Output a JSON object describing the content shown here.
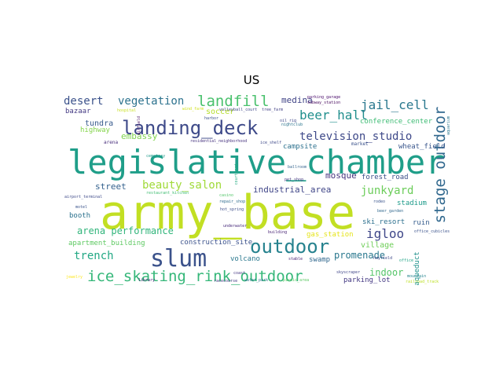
{
  "title": "US",
  "words": [
    {
      "text": "army_base",
      "color": "#c2df23"
    },
    {
      "text": "legislative_chamber",
      "color": "#1f9e89"
    },
    {
      "text": "landing_deck",
      "color": "#3e4a89"
    },
    {
      "text": "slum",
      "color": "#3b528b"
    },
    {
      "text": "ice_skating_rink_outdoor",
      "color": "#35b779"
    },
    {
      "text": "outdoor",
      "color": "#26828e"
    },
    {
      "text": "stage outdoor",
      "color": "#31688e"
    },
    {
      "text": "landfill",
      "color": "#4ac16d"
    },
    {
      "text": "television_studio",
      "color": "#3e4989"
    },
    {
      "text": "beer_hall",
      "color": "#218f8d"
    },
    {
      "text": "jail_cell",
      "color": "#2a788e"
    },
    {
      "text": "desert",
      "color": "#3b528b"
    },
    {
      "text": "vegetation",
      "color": "#2c728e"
    },
    {
      "text": "medina",
      "color": "#414487"
    },
    {
      "text": "beauty_salon",
      "color": "#a0da39"
    },
    {
      "text": "junkyard",
      "color": "#6ccd5a"
    },
    {
      "text": "igloo",
      "color": "#3f4788"
    },
    {
      "text": "trench",
      "color": "#22a884"
    },
    {
      "text": "arena performance",
      "color": "#31b57b"
    },
    {
      "text": "promenade",
      "color": "#2a788e"
    },
    {
      "text": "indoor",
      "color": "#54c568"
    },
    {
      "text": "mosque",
      "color": "#46337e"
    },
    {
      "text": "industrial_area",
      "color": "#404688"
    },
    {
      "text": "street",
      "color": "#34618d"
    },
    {
      "text": "embassy",
      "color": "#7fd34e"
    },
    {
      "text": "tundra",
      "color": "#375a8c"
    },
    {
      "text": "soccer",
      "color": "#b5de2b"
    },
    {
      "text": "bazaar",
      "color": "#443a83"
    },
    {
      "text": "highway",
      "color": "#84d44b"
    },
    {
      "text": "conference_center",
      "color": "#3dbc74"
    },
    {
      "text": "wheat_field",
      "color": "#39568c"
    },
    {
      "text": "campsite",
      "color": "#2d718e"
    },
    {
      "text": "forest_road",
      "color": "#3c4f8a"
    },
    {
      "text": "stadium",
      "color": "#1e9b8a"
    },
    {
      "text": "ski_resort",
      "color": "#2d708e"
    },
    {
      "text": "ruin",
      "color": "#365d8d"
    },
    {
      "text": "booth",
      "color": "#2c728e"
    },
    {
      "text": "village",
      "color": "#6ece58"
    },
    {
      "text": "apartment_building",
      "color": "#5ec962"
    },
    {
      "text": "construction_site",
      "color": "#3b528b"
    },
    {
      "text": "gas_station",
      "color": "#e5e419"
    },
    {
      "text": "volcano",
      "color": "#2a788e"
    },
    {
      "text": "swamp",
      "color": "#31688e"
    },
    {
      "text": "parking_lot",
      "color": "#443983"
    },
    {
      "text": "aqueduct",
      "color": "#20928c"
    },
    {
      "text": "arena",
      "color": "#472d7b"
    },
    {
      "text": "market",
      "color": "#3b528b"
    },
    {
      "text": "hospital",
      "color": "#c8e020"
    },
    {
      "text": "wind_farm",
      "color": "#d0e11c"
    },
    {
      "text": "residential_neighborhood",
      "color": "#46327e"
    },
    {
      "text": "ice_shelf",
      "color": "#3e4989"
    },
    {
      "text": "oil_rig",
      "color": "#3f4889"
    },
    {
      "text": "pet_shop",
      "color": "#453781"
    },
    {
      "text": "airport_terminal",
      "color": "#3e4a89"
    },
    {
      "text": "restaurant_kitchen",
      "color": "#40bd72"
    },
    {
      "text": "hot_spring",
      "color": "#3d4e8a"
    },
    {
      "text": "repair_shop",
      "color": "#2f6c8e"
    },
    {
      "text": "underwater",
      "color": "#472a7a"
    },
    {
      "text": "building",
      "color": "#482374"
    },
    {
      "text": "motel",
      "color": "#3a538b"
    },
    {
      "text": "water_park",
      "color": "#2c728e"
    },
    {
      "text": "library",
      "color": "#482878"
    },
    {
      "text": "picnic_area",
      "color": "#5cc863"
    },
    {
      "text": "jewelry",
      "color": "#fde725"
    },
    {
      "text": "stable",
      "color": "#482475"
    },
    {
      "text": "skyscraper",
      "color": "#404688"
    },
    {
      "text": "office",
      "color": "#20a486"
    },
    {
      "text": "hayfield",
      "color": "#3e4989"
    },
    {
      "text": "racecourse",
      "color": "#433d84"
    },
    {
      "text": "railroad_track",
      "color": "#bddf26"
    },
    {
      "text": "aquarium",
      "color": "#2a778e"
    },
    {
      "text": "office_cubicles",
      "color": "#3b528b"
    },
    {
      "text": "beer_garden",
      "color": "#31688e"
    },
    {
      "text": "parking_garage",
      "color": "#4a0c6b"
    },
    {
      "text": "subway_station",
      "color": "#46085c"
    },
    {
      "text": "volleyball_court",
      "color": "#3f4788"
    },
    {
      "text": "tree_farm",
      "color": "#424086"
    },
    {
      "text": "harbor",
      "color": "#3b528b"
    },
    {
      "text": "airfield",
      "color": "#471063"
    },
    {
      "text": "cemetery",
      "color": "#1f9a8a"
    },
    {
      "text": "rodeo",
      "color": "#3a548c"
    },
    {
      "text": "ballroom",
      "color": "#33638d"
    },
    {
      "text": "courtyard",
      "color": "#25ac82"
    },
    {
      "text": "nightclub",
      "color": "#2b748e"
    },
    {
      "text": "casino",
      "color": "#52c569"
    },
    {
      "text": "coast",
      "color": "#453882"
    },
    {
      "text": "mountain",
      "color": "#25848e"
    }
  ]
}
